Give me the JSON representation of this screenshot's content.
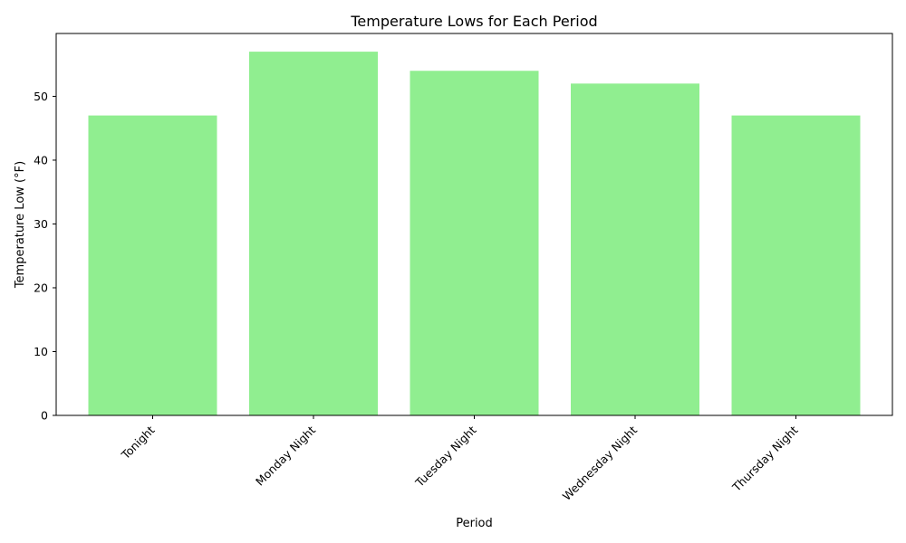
{
  "chart_data": {
    "type": "bar",
    "title": "Temperature Lows for Each Period",
    "xlabel": "Period",
    "ylabel": "Temperature Low (°F)",
    "categories": [
      "Tonight",
      "Monday Night",
      "Tuesday Night",
      "Wednesday Night",
      "Thursday Night"
    ],
    "values": [
      47,
      57,
      54,
      52,
      47
    ],
    "ylim": [
      0,
      59.85
    ],
    "yticks": [
      0,
      10,
      20,
      30,
      40,
      50
    ],
    "grid": false,
    "legend": "none",
    "bar_color": "#90ee90"
  }
}
